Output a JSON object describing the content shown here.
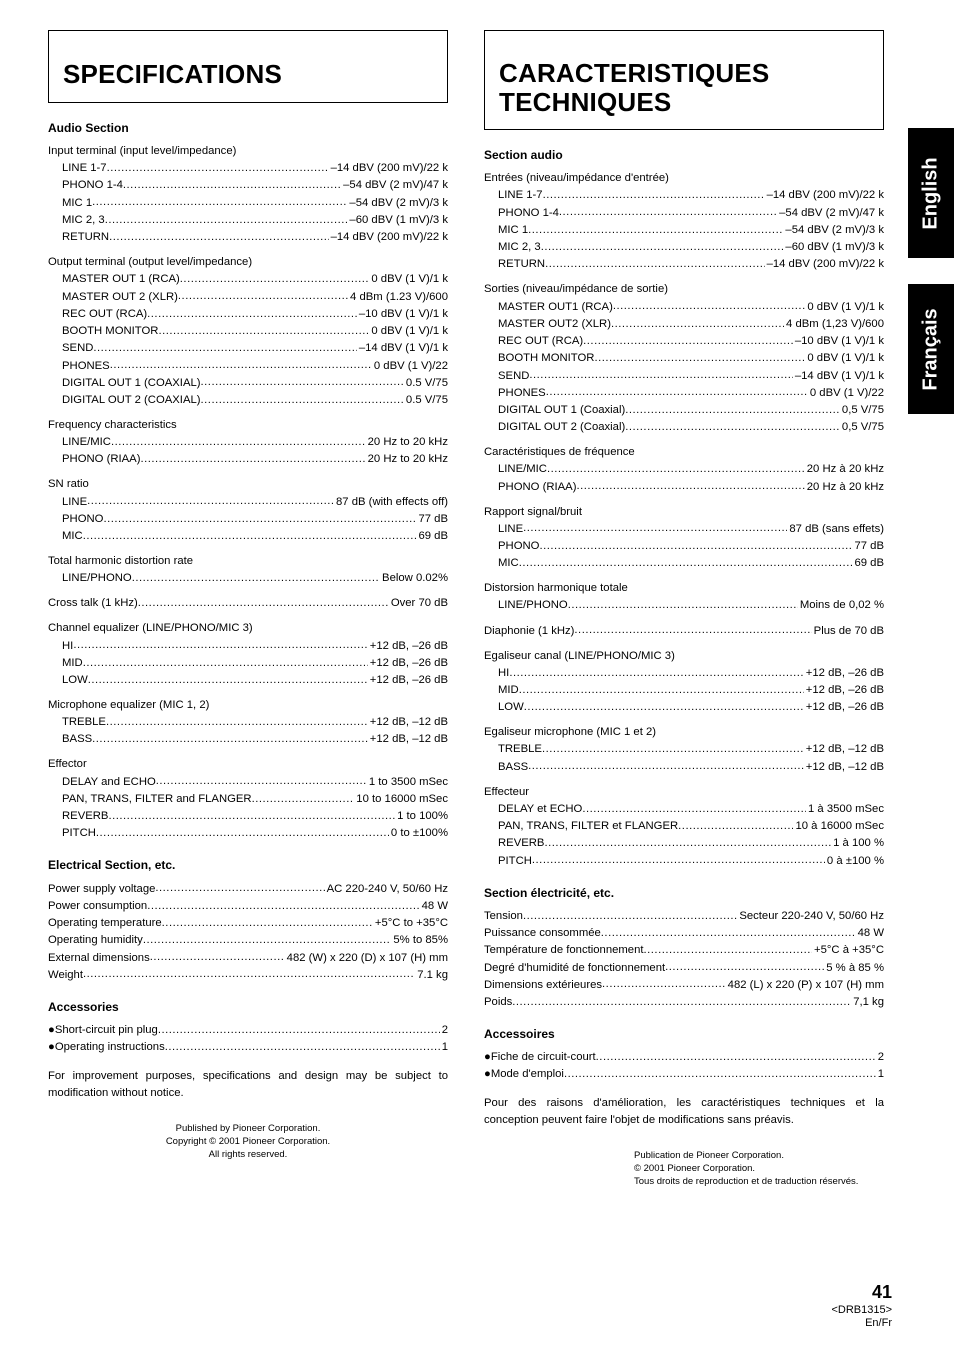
{
  "left": {
    "title": "SPECIFICATIONS",
    "sections": {
      "audio_head": "Audio Section",
      "input": {
        "label": "Input terminal (input level/impedance)",
        "rows": [
          {
            "l": "LINE 1-7",
            "v": "–14 dBV (200 mV)/22 k"
          },
          {
            "l": "PHONO 1-4",
            "v": "–54 dBV (2 mV)/47 k"
          },
          {
            "l": "MIC 1",
            "v": "–54 dBV (2 mV)/3 k"
          },
          {
            "l": "MIC 2, 3",
            "v": "–60 dBV (1 mV)/3 k"
          },
          {
            "l": "RETURN",
            "v": "–14 dBV (200 mV)/22 k"
          }
        ]
      },
      "output": {
        "label": "Output terminal (output level/impedance)",
        "rows": [
          {
            "l": "MASTER OUT 1 (RCA)",
            "v": "0 dBV (1 V)/1 k"
          },
          {
            "l": "MASTER OUT 2 (XLR)",
            "v": "4 dBm (1.23 V)/600"
          },
          {
            "l": "REC OUT (RCA)",
            "v": "–10 dBV (1 V)/1 k"
          },
          {
            "l": "BOOTH MONITOR",
            "v": "0 dBV (1 V)/1 k"
          },
          {
            "l": "SEND",
            "v": "–14 dBV (1 V)/1 k"
          },
          {
            "l": "PHONES",
            "v": "0 dBV (1 V)/22"
          },
          {
            "l": "DIGITAL OUT 1 (COAXIAL)",
            "v": "0.5 V/75"
          },
          {
            "l": "DIGITAL OUT 2 (COAXIAL)",
            "v": "0.5 V/75"
          }
        ]
      },
      "freq": {
        "label": "Frequency characteristics",
        "rows": [
          {
            "l": "LINE/MIC",
            "v": "20 Hz to 20 kHz"
          },
          {
            "l": "PHONO (RIAA)",
            "v": "20 Hz to 20 kHz"
          }
        ]
      },
      "sn": {
        "label": "SN ratio",
        "rows": [
          {
            "l": "LINE",
            "v": "87 dB (with effects off)"
          },
          {
            "l": "PHONO",
            "v": "77 dB"
          },
          {
            "l": "MIC",
            "v": "69 dB"
          }
        ]
      },
      "thd": {
        "label": "Total harmonic distortion rate",
        "rows": [
          {
            "l": "LINE/PHONO",
            "v": "Below 0.02%"
          }
        ]
      },
      "crosstalk": {
        "l": "Cross talk (1 kHz)",
        "v": "Over 70 dB"
      },
      "cheq": {
        "label": "Channel equalizer (LINE/PHONO/MIC 3)",
        "rows": [
          {
            "l": "HI",
            "v": "+12 dB, –26 dB"
          },
          {
            "l": "MID",
            "v": "+12 dB, –26 dB"
          },
          {
            "l": "LOW",
            "v": "+12 dB, –26 dB"
          }
        ]
      },
      "miceq": {
        "label": "Microphone equalizer (MIC 1, 2)",
        "rows": [
          {
            "l": "TREBLE",
            "v": "+12 dB, –12 dB"
          },
          {
            "l": "BASS",
            "v": "+12 dB, –12 dB"
          }
        ]
      },
      "eff": {
        "label": "Effector",
        "rows": [
          {
            "l": "DELAY and ECHO",
            "v": "1 to 3500 mSec"
          },
          {
            "l": "PAN, TRANS, FILTER and FLANGER",
            "v": "10 to 16000 mSec"
          },
          {
            "l": "REVERB",
            "v": "1 to 100%"
          },
          {
            "l": "PITCH",
            "v": "0 to ±100%"
          }
        ]
      },
      "elec_head": "Electrical Section, etc.",
      "elec_rows": [
        {
          "l": "Power supply voltage",
          "v": "AC 220-240 V, 50/60 Hz"
        },
        {
          "l": "Power consumption",
          "v": "48 W"
        },
        {
          "l": "Operating temperature",
          "v": "+5°C to +35°C"
        },
        {
          "l": "Operating humidity",
          "v": "5% to 85%"
        },
        {
          "l": "External dimensions",
          "v": "482 (W) x 220 (D) x 107 (H) mm"
        },
        {
          "l": "Weight",
          "v": "7.1 kg"
        }
      ],
      "acc_head": "Accessories",
      "acc_rows": [
        {
          "l": "Short-circuit pin plug",
          "v": "2"
        },
        {
          "l": "Operating instructions",
          "v": "1"
        }
      ],
      "note": "For improvement purposes, specifications and design may be subject to modification without notice.",
      "pub1": "Published by Pioneer Corporation.",
      "pub2": "Copyright © 2001 Pioneer Corporation.",
      "pub3": "All rights reserved."
    }
  },
  "right": {
    "title1": "CARACTERISTIQUES",
    "title2": "TECHNIQUES",
    "sections": {
      "audio_head": "Section audio",
      "input": {
        "label": "Entrées (niveau/impédance d'entrée)",
        "rows": [
          {
            "l": "LINE 1-7",
            "v": "–14 dBV (200 mV)/22 k"
          },
          {
            "l": "PHONO 1-4",
            "v": "–54 dBV (2 mV)/47 k"
          },
          {
            "l": "MIC 1",
            "v": "–54 dBV (2 mV)/3 k"
          },
          {
            "l": "MIC 2, 3",
            "v": "–60 dBV (1 mV)/3 k"
          },
          {
            "l": "RETURN",
            "v": "–14 dBV (200 mV)/22 k"
          }
        ]
      },
      "output": {
        "label": "Sorties (niveau/impédance de sortie)",
        "rows": [
          {
            "l": "MASTER OUT1 (RCA)",
            "v": "0 dBV (1 V)/1 k"
          },
          {
            "l": "MASTER OUT2 (XLR)",
            "v": "4 dBm (1,23 V)/600"
          },
          {
            "l": "REC OUT (RCA)",
            "v": "–10 dBV (1 V)/1 k"
          },
          {
            "l": "BOOTH MONITOR",
            "v": "0 dBV (1 V)/1 k"
          },
          {
            "l": "SEND",
            "v": "–14 dBV (1 V)/1 k"
          },
          {
            "l": "PHONES",
            "v": "0 dBV (1 V)/22"
          },
          {
            "l": "DIGITAL OUT 1 (Coaxial)",
            "v": "0,5 V/75"
          },
          {
            "l": "DIGITAL OUT 2 (Coaxial)",
            "v": "0,5 V/75"
          }
        ]
      },
      "freq": {
        "label": "Caractéristiques de fréquence",
        "rows": [
          {
            "l": "LINE/MIC",
            "v": "20 Hz à 20 kHz"
          },
          {
            "l": "PHONO (RIAA)",
            "v": "20 Hz à 20 kHz"
          }
        ]
      },
      "sn": {
        "label": "Rapport signal/bruit",
        "rows": [
          {
            "l": "LINE",
            "v": "87 dB (sans effets)"
          },
          {
            "l": "PHONO",
            "v": "77 dB"
          },
          {
            "l": "MIC",
            "v": "69 dB"
          }
        ]
      },
      "thd": {
        "label": "Distorsion harmonique totale",
        "rows": [
          {
            "l": "LINE/PHONO",
            "v": "Moins de 0,02 %"
          }
        ]
      },
      "crosstalk": {
        "l": "Diaphonie (1 kHz)",
        "v": "Plus de 70  dB"
      },
      "cheq": {
        "label": "Egaliseur canal (LINE/PHONO/MIC 3)",
        "rows": [
          {
            "l": "HI",
            "v": "+12 dB, –26 dB"
          },
          {
            "l": "MID",
            "v": "+12 dB, –26 dB"
          },
          {
            "l": "LOW",
            "v": "+12 dB, –26 dB"
          }
        ]
      },
      "miceq": {
        "label": "Egaliseur microphone (MIC 1 et 2)",
        "rows": [
          {
            "l": "TREBLE",
            "v": "+12 dB, –12 dB"
          },
          {
            "l": "BASS",
            "v": "+12 dB, –12 dB"
          }
        ]
      },
      "eff": {
        "label": "Effecteur",
        "rows": [
          {
            "l": "DELAY et ECHO",
            "v": "1 à 3500 mSec"
          },
          {
            "l": "PAN, TRANS, FILTER et FLANGER",
            "v": "10 à 16000 mSec"
          },
          {
            "l": "REVERB",
            "v": "1 à 100 %"
          },
          {
            "l": "PITCH",
            "v": "0 à ±100 %"
          }
        ]
      },
      "elec_head": "Section électricité, etc.",
      "elec_rows": [
        {
          "l": "Tension",
          "v": "Secteur 220-240 V, 50/60 Hz"
        },
        {
          "l": "Puissance consommée",
          "v": "48 W"
        },
        {
          "l": "Température de fonctionnement",
          "v": "+5°C à +35°C"
        },
        {
          "l": "Degré d'humidité de fonctionnement",
          "v": "5 % à 85 %"
        },
        {
          "l": "Dimensions extérieures",
          "v": "482 (L) x 220 (P) x 107 (H) mm"
        },
        {
          "l": "Poids",
          "v": "7,1 kg"
        }
      ],
      "acc_head": "Accessoires",
      "acc_rows": [
        {
          "l": "Fiche de circuit-court",
          "v": "2"
        },
        {
          "l": "Mode d'emploi",
          "v": "1"
        }
      ],
      "note": "Pour des raisons d'amélioration, les caractéristiques techniques et la conception peuvent faire l'objet de modifications sans préavis.",
      "pub1": "Publication de Pioneer Corporation.",
      "pub2": "© 2001 Pioneer Corporation.",
      "pub3": "Tous droits de reproduction et de traduction réservés."
    }
  },
  "footer": {
    "page": "41",
    "code": "<DRB1315>",
    "lang": "En/Fr"
  },
  "tabs": {
    "en": "English",
    "fr": "Français"
  }
}
